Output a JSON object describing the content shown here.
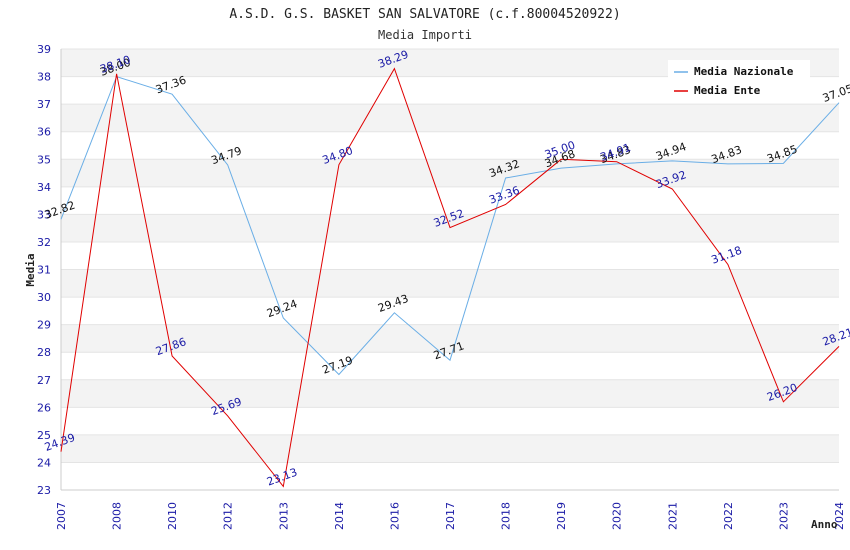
{
  "chart_data": {
    "type": "line",
    "title": "A.S.D. G.S. BASKET SAN SALVATORE (c.f.80004520922)",
    "subtitle": "Media Importi",
    "xlabel": "Anno",
    "ylabel": "Media",
    "ylim": [
      23,
      39
    ],
    "yticks": [
      23,
      24,
      25,
      26,
      27,
      28,
      29,
      30,
      31,
      32,
      33,
      34,
      35,
      36,
      37,
      38,
      39
    ],
    "categories": [
      "2007",
      "2008",
      "2010",
      "2012",
      "2013",
      "2014",
      "2016",
      "2017",
      "2018",
      "2019",
      "2020",
      "2021",
      "2022",
      "2023",
      "2024"
    ],
    "grid": true,
    "legend_position": "top-right",
    "series": [
      {
        "name": "Media Nazionale",
        "color": "#6aaee6",
        "values": [
          32.82,
          38.0,
          37.36,
          34.79,
          29.24,
          27.19,
          29.43,
          27.71,
          34.32,
          34.68,
          34.83,
          34.94,
          34.83,
          34.85,
          37.05
        ],
        "labels": [
          "32.82",
          "38.00",
          "37.36",
          "34.79",
          "29.24",
          "27.19",
          "29.43",
          "27.71",
          "34.32",
          "34.68",
          "34.83",
          "34.94",
          "34.83",
          "34.85",
          "37.05"
        ]
      },
      {
        "name": "Media Ente",
        "color": "#e00000",
        "values": [
          24.39,
          38.1,
          27.86,
          25.69,
          23.13,
          34.8,
          38.29,
          32.52,
          33.36,
          35.0,
          34.91,
          33.92,
          31.18,
          26.2,
          28.21
        ],
        "labels": [
          "24.39",
          "38.10",
          "27.86",
          "25.69",
          "23.13",
          "34.80",
          "38.29",
          "32.52",
          "33.36",
          "35.00",
          "34.91",
          "33.92",
          "31.18",
          "26.20",
          "28.21"
        ]
      }
    ]
  }
}
